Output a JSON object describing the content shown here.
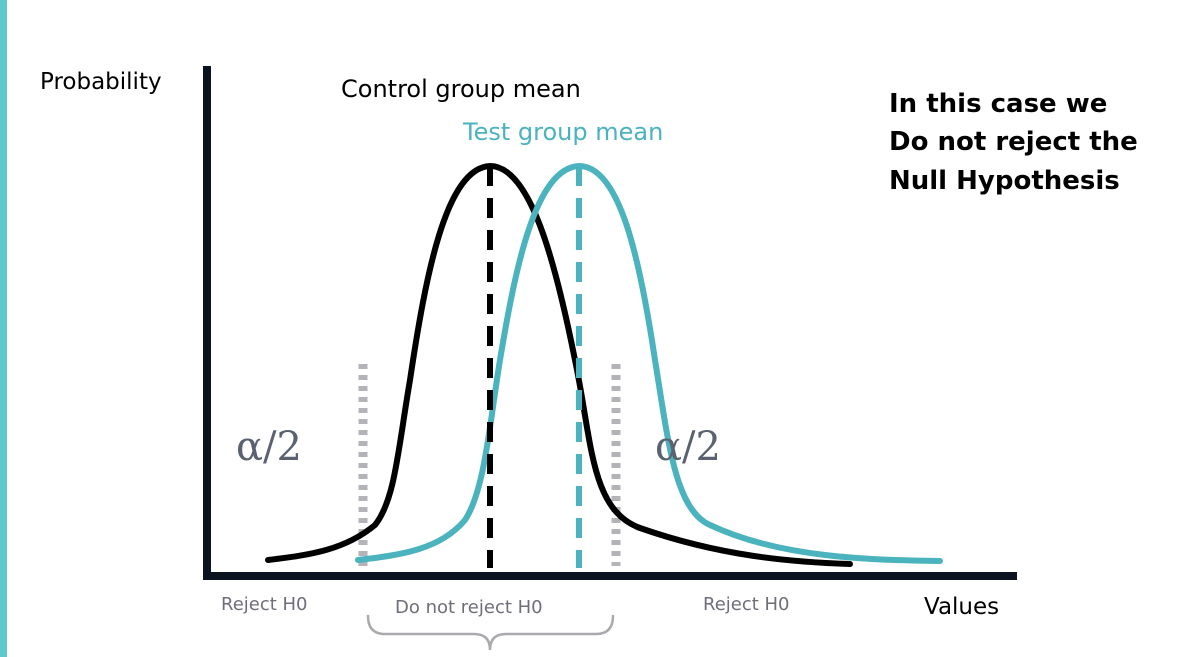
{
  "colors": {
    "accent_bar": "#5ec9cf",
    "control_curve": "#000000",
    "test_curve": "#4ab3be",
    "axis": "#0b1220",
    "critical_lines": "#b3b3b8",
    "region_text": "#6e6e78",
    "alpha_text": "#5a6270"
  },
  "axis": {
    "y_label": "Probability",
    "x_label": "Values"
  },
  "labels": {
    "control_mean": "Control group mean",
    "test_mean": "Test group mean",
    "alpha_left": "α/2",
    "alpha_right": "α/2"
  },
  "note": {
    "line1": "In this case we",
    "line2": "Do not reject the",
    "line3": "Null Hypothesis"
  },
  "regions": {
    "reject_left": "Reject H0",
    "do_not_reject": "Do not reject H0",
    "reject_right": "Reject H0"
  }
}
